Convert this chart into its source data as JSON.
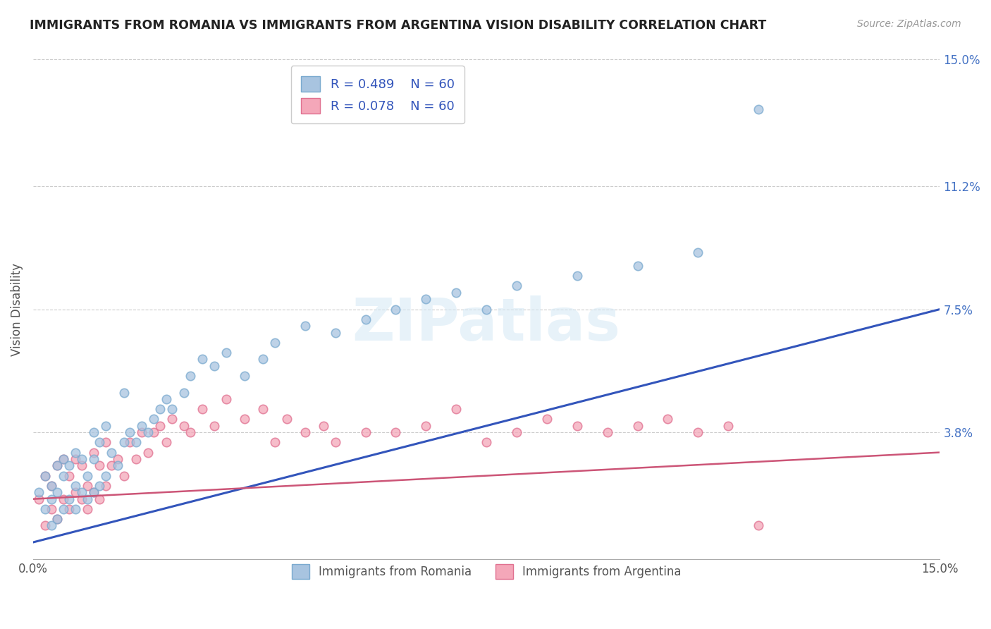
{
  "title": "IMMIGRANTS FROM ROMANIA VS IMMIGRANTS FROM ARGENTINA VISION DISABILITY CORRELATION CHART",
  "source": "Source: ZipAtlas.com",
  "ylabel": "Vision Disability",
  "xlim": [
    0.0,
    0.15
  ],
  "ylim": [
    0.0,
    0.15
  ],
  "yticks": [
    0.0,
    0.038,
    0.075,
    0.112,
    0.15
  ],
  "ytick_labels": [
    "",
    "3.8%",
    "7.5%",
    "11.2%",
    "15.0%"
  ],
  "xticks": [
    0.0,
    0.15
  ],
  "xtick_labels": [
    "0.0%",
    "15.0%"
  ],
  "romania_color": "#a8c4e0",
  "romania_edge_color": "#7aaacf",
  "argentina_color": "#f4a7b9",
  "argentina_edge_color": "#e07090",
  "romania_line_color": "#3355bb",
  "argentina_line_color": "#cc5577",
  "romania_R": 0.489,
  "romania_N": 60,
  "argentina_R": 0.078,
  "argentina_N": 60,
  "legend_label_romania": "Immigrants from Romania",
  "legend_label_argentina": "Immigrants from Argentina",
  "watermark": "ZIPatlas",
  "romania_line_start_y": 0.005,
  "romania_line_end_y": 0.075,
  "argentina_line_start_y": 0.018,
  "argentina_line_end_y": 0.032,
  "romania_scatter_x": [
    0.001,
    0.002,
    0.002,
    0.003,
    0.003,
    0.003,
    0.004,
    0.004,
    0.004,
    0.005,
    0.005,
    0.005,
    0.006,
    0.006,
    0.007,
    0.007,
    0.007,
    0.008,
    0.008,
    0.009,
    0.009,
    0.01,
    0.01,
    0.01,
    0.011,
    0.011,
    0.012,
    0.012,
    0.013,
    0.014,
    0.015,
    0.015,
    0.016,
    0.017,
    0.018,
    0.019,
    0.02,
    0.021,
    0.022,
    0.023,
    0.025,
    0.026,
    0.028,
    0.03,
    0.032,
    0.035,
    0.038,
    0.04,
    0.045,
    0.05,
    0.055,
    0.06,
    0.065,
    0.07,
    0.075,
    0.08,
    0.09,
    0.1,
    0.11,
    0.12
  ],
  "romania_scatter_y": [
    0.02,
    0.015,
    0.025,
    0.01,
    0.018,
    0.022,
    0.012,
    0.02,
    0.028,
    0.015,
    0.025,
    0.03,
    0.018,
    0.028,
    0.015,
    0.022,
    0.032,
    0.02,
    0.03,
    0.018,
    0.025,
    0.02,
    0.03,
    0.038,
    0.022,
    0.035,
    0.025,
    0.04,
    0.032,
    0.028,
    0.035,
    0.05,
    0.038,
    0.035,
    0.04,
    0.038,
    0.042,
    0.045,
    0.048,
    0.045,
    0.05,
    0.055,
    0.06,
    0.058,
    0.062,
    0.055,
    0.06,
    0.065,
    0.07,
    0.068,
    0.072,
    0.075,
    0.078,
    0.08,
    0.075,
    0.082,
    0.085,
    0.088,
    0.092,
    0.135
  ],
  "argentina_scatter_x": [
    0.001,
    0.002,
    0.002,
    0.003,
    0.003,
    0.004,
    0.004,
    0.005,
    0.005,
    0.006,
    0.006,
    0.007,
    0.007,
    0.008,
    0.008,
    0.009,
    0.009,
    0.01,
    0.01,
    0.011,
    0.011,
    0.012,
    0.012,
    0.013,
    0.014,
    0.015,
    0.016,
    0.017,
    0.018,
    0.019,
    0.02,
    0.021,
    0.022,
    0.023,
    0.025,
    0.026,
    0.028,
    0.03,
    0.032,
    0.035,
    0.038,
    0.04,
    0.042,
    0.045,
    0.048,
    0.05,
    0.055,
    0.06,
    0.065,
    0.07,
    0.075,
    0.08,
    0.085,
    0.09,
    0.095,
    0.1,
    0.105,
    0.11,
    0.115,
    0.12
  ],
  "argentina_scatter_y": [
    0.018,
    0.01,
    0.025,
    0.015,
    0.022,
    0.012,
    0.028,
    0.018,
    0.03,
    0.015,
    0.025,
    0.02,
    0.03,
    0.018,
    0.028,
    0.015,
    0.022,
    0.02,
    0.032,
    0.018,
    0.028,
    0.022,
    0.035,
    0.028,
    0.03,
    0.025,
    0.035,
    0.03,
    0.038,
    0.032,
    0.038,
    0.04,
    0.035,
    0.042,
    0.04,
    0.038,
    0.045,
    0.04,
    0.048,
    0.042,
    0.045,
    0.035,
    0.042,
    0.038,
    0.04,
    0.035,
    0.038,
    0.038,
    0.04,
    0.045,
    0.035,
    0.038,
    0.042,
    0.04,
    0.038,
    0.04,
    0.042,
    0.038,
    0.04,
    0.01
  ]
}
